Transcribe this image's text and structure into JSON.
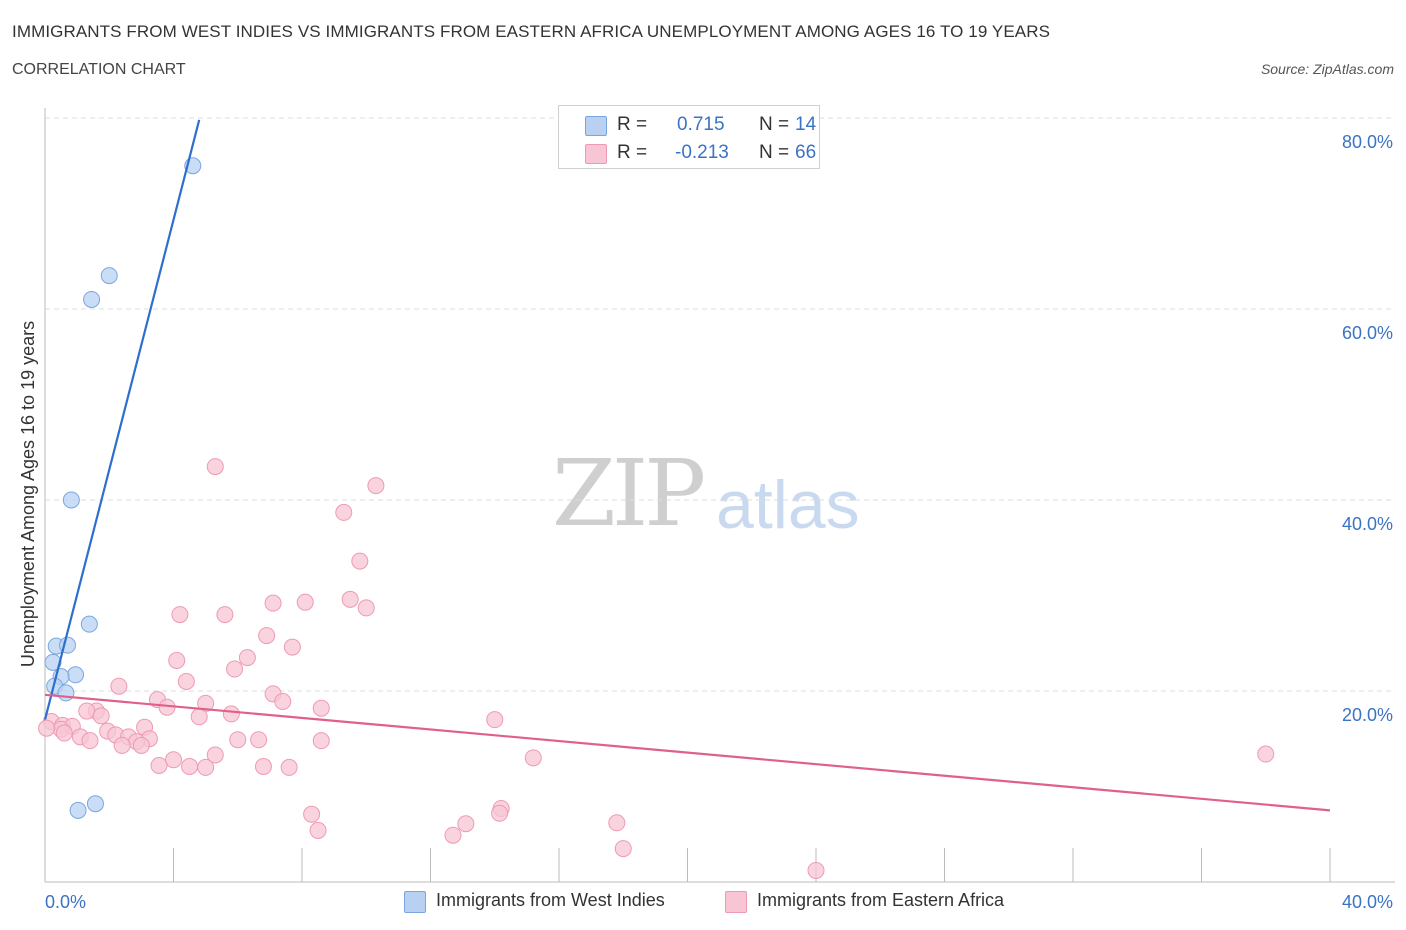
{
  "header": {
    "title": "IMMIGRANTS FROM WEST INDIES VS IMMIGRANTS FROM EASTERN AFRICA UNEMPLOYMENT AMONG AGES 16 TO 19 YEARS",
    "subtitle": "CORRELATION CHART",
    "source": "Source: ZipAtlas.com"
  },
  "watermark": {
    "zip": "ZIP",
    "atlas": "atlas"
  },
  "legend": {
    "r_label": "R =",
    "n_label": "N =",
    "west_indies": {
      "r": "0.715",
      "n": "14"
    },
    "eastern_africa": {
      "r": "-0.213",
      "n": "66"
    }
  },
  "bottom_legend": {
    "west_indies": "Immigrants from West Indies",
    "eastern_africa": "Immigrants from Eastern Africa"
  },
  "colors": {
    "blue_fill": "#b8d1f3",
    "blue_stroke": "#7aa6e0",
    "blue_line": "#2e6fce",
    "pink_fill": "#f7c5d3",
    "pink_stroke": "#ee9ab4",
    "pink_line": "#e0608c",
    "tick_label": "#3b73c4",
    "grid": "#dcdcdc"
  },
  "chart_data": {
    "type": "scatter",
    "title": "IMMIGRANTS FROM WEST INDIES VS IMMIGRANTS FROM EASTERN AFRICA UNEMPLOYMENT AMONG AGES 16 TO 19 YEARS",
    "xlabel": "",
    "ylabel": "Unemployment Among Ages 16 to 19 years",
    "xlim": [
      0,
      40
    ],
    "ylim": [
      0,
      80
    ],
    "x_tick_labels": [
      "0.0%",
      "40.0%"
    ],
    "y_ticks": [
      20,
      40,
      60,
      80
    ],
    "y_tick_labels": [
      "20.0%",
      "40.0%",
      "60.0%",
      "80.0%"
    ],
    "grid": true,
    "legend_position": "top-center",
    "series": [
      {
        "name": "Immigrants from West Indies",
        "color_key": "blue",
        "trend": {
          "x": [
            0.0,
            4.8
          ],
          "y": [
            17.0,
            79.8
          ]
        },
        "points": [
          {
            "x": 4.6,
            "y": 75.0
          },
          {
            "x": 2.0,
            "y": 63.5
          },
          {
            "x": 1.45,
            "y": 61.0
          },
          {
            "x": 0.82,
            "y": 40.0
          },
          {
            "x": 1.38,
            "y": 27.0
          },
          {
            "x": 0.35,
            "y": 24.7
          },
          {
            "x": 0.7,
            "y": 24.8
          },
          {
            "x": 0.25,
            "y": 23.0
          },
          {
            "x": 0.95,
            "y": 21.7
          },
          {
            "x": 0.5,
            "y": 21.5
          },
          {
            "x": 0.3,
            "y": 20.5
          },
          {
            "x": 0.65,
            "y": 19.8
          },
          {
            "x": 1.57,
            "y": 8.2
          },
          {
            "x": 1.03,
            "y": 7.5
          }
        ]
      },
      {
        "name": "Immigrants from Eastern Africa",
        "color_key": "pink",
        "trend": {
          "x": [
            0.0,
            40.0
          ],
          "y": [
            19.6,
            7.5
          ]
        },
        "points": [
          {
            "x": 5.3,
            "y": 43.5
          },
          {
            "x": 10.3,
            "y": 41.5
          },
          {
            "x": 9.3,
            "y": 38.7
          },
          {
            "x": 9.8,
            "y": 33.6
          },
          {
            "x": 9.5,
            "y": 29.6
          },
          {
            "x": 10.0,
            "y": 28.7
          },
          {
            "x": 7.1,
            "y": 29.2
          },
          {
            "x": 8.1,
            "y": 29.3
          },
          {
            "x": 4.2,
            "y": 28.0
          },
          {
            "x": 5.6,
            "y": 28.0
          },
          {
            "x": 6.9,
            "y": 25.8
          },
          {
            "x": 7.7,
            "y": 24.6
          },
          {
            "x": 6.3,
            "y": 23.5
          },
          {
            "x": 4.1,
            "y": 23.2
          },
          {
            "x": 5.9,
            "y": 22.3
          },
          {
            "x": 4.4,
            "y": 21.0
          },
          {
            "x": 2.3,
            "y": 20.5
          },
          {
            "x": 7.1,
            "y": 19.7
          },
          {
            "x": 3.5,
            "y": 19.1
          },
          {
            "x": 7.4,
            "y": 18.9
          },
          {
            "x": 5.0,
            "y": 18.7
          },
          {
            "x": 3.8,
            "y": 18.3
          },
          {
            "x": 8.6,
            "y": 18.2
          },
          {
            "x": 1.6,
            "y": 17.9
          },
          {
            "x": 5.8,
            "y": 17.6
          },
          {
            "x": 4.8,
            "y": 17.3
          },
          {
            "x": 1.3,
            "y": 17.9
          },
          {
            "x": 1.75,
            "y": 17.4
          },
          {
            "x": 14.0,
            "y": 17.0
          },
          {
            "x": 0.2,
            "y": 16.8
          },
          {
            "x": 0.55,
            "y": 16.4
          },
          {
            "x": 0.85,
            "y": 16.3
          },
          {
            "x": 0.5,
            "y": 16.0
          },
          {
            "x": 0.05,
            "y": 16.1
          },
          {
            "x": 3.1,
            "y": 16.2
          },
          {
            "x": 0.6,
            "y": 15.6
          },
          {
            "x": 1.95,
            "y": 15.8
          },
          {
            "x": 2.2,
            "y": 15.4
          },
          {
            "x": 1.1,
            "y": 15.2
          },
          {
            "x": 2.6,
            "y": 15.2
          },
          {
            "x": 3.25,
            "y": 15.0
          },
          {
            "x": 1.4,
            "y": 14.8
          },
          {
            "x": 6.0,
            "y": 14.9
          },
          {
            "x": 6.65,
            "y": 14.9
          },
          {
            "x": 8.6,
            "y": 14.8
          },
          {
            "x": 2.85,
            "y": 14.7
          },
          {
            "x": 2.4,
            "y": 14.3
          },
          {
            "x": 3.0,
            "y": 14.3
          },
          {
            "x": 5.3,
            "y": 13.3
          },
          {
            "x": 38.0,
            "y": 13.4
          },
          {
            "x": 15.2,
            "y": 13.0
          },
          {
            "x": 4.0,
            "y": 12.8
          },
          {
            "x": 3.55,
            "y": 12.2
          },
          {
            "x": 4.5,
            "y": 12.1
          },
          {
            "x": 5.0,
            "y": 12.0
          },
          {
            "x": 6.8,
            "y": 12.1
          },
          {
            "x": 7.6,
            "y": 12.0
          },
          {
            "x": 14.2,
            "y": 7.7
          },
          {
            "x": 14.15,
            "y": 7.2
          },
          {
            "x": 8.3,
            "y": 7.1
          },
          {
            "x": 17.8,
            "y": 6.2
          },
          {
            "x": 13.1,
            "y": 6.1
          },
          {
            "x": 8.5,
            "y": 5.4
          },
          {
            "x": 12.7,
            "y": 4.9
          },
          {
            "x": 18.0,
            "y": 3.5
          },
          {
            "x": 24.0,
            "y": 1.2
          }
        ]
      }
    ]
  }
}
